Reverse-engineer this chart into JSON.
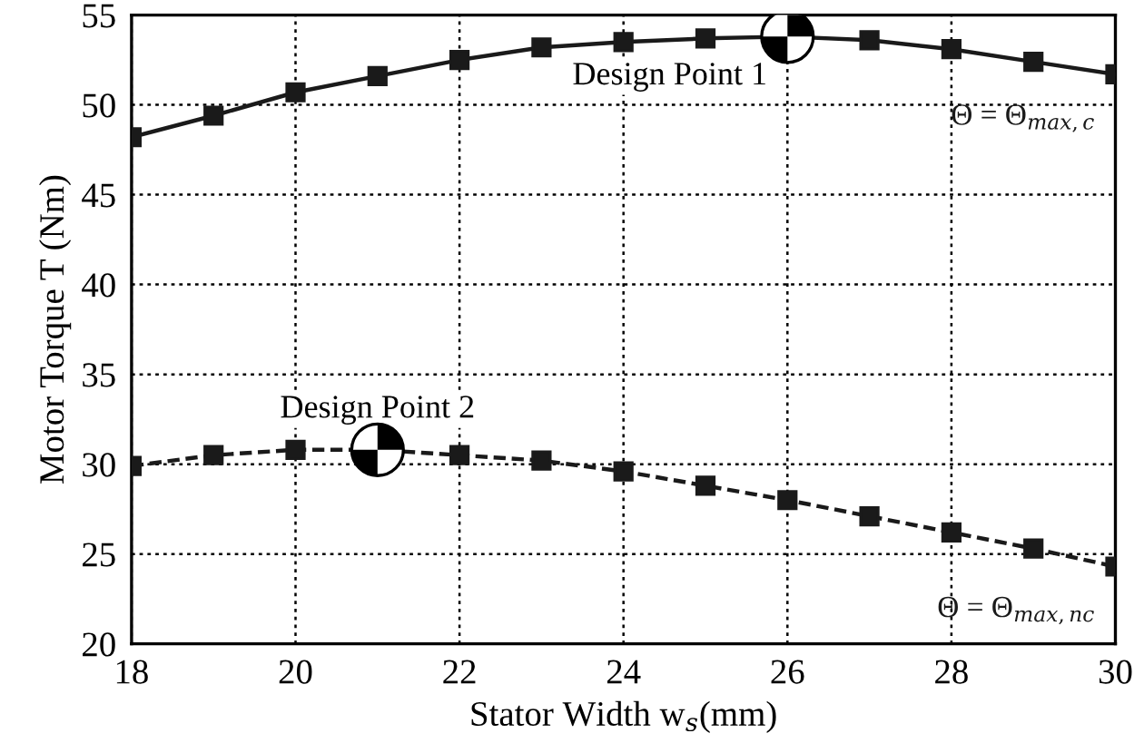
{
  "chart_data": {
    "type": "line",
    "xlabel": "Stator Width w$_{s}$(mm)",
    "ylabel": "Motor Torque T (Nm)",
    "x": [
      18,
      19,
      20,
      21,
      22,
      23,
      24,
      25,
      26,
      27,
      28,
      29,
      30
    ],
    "series": [
      {
        "name": "Θ = Θ$_{max,c}$",
        "color": "#1a1a1a",
        "line_style": "solid",
        "values": [
          48.2,
          49.4,
          50.7,
          51.6,
          52.5,
          53.2,
          53.5,
          53.7,
          53.8,
          53.6,
          53.1,
          52.4,
          51.7
        ]
      },
      {
        "name": "Θ = Θ$_{max,nc}$",
        "color": "#1a1a1a",
        "line_style": "dashed",
        "values": [
          29.9,
          30.5,
          30.8,
          30.8,
          30.5,
          30.2,
          29.6,
          28.8,
          28.0,
          27.1,
          26.2,
          25.3,
          24.3
        ]
      }
    ],
    "annotations": [
      {
        "text": "Design Point 1",
        "x": 26,
        "y": 53.8
      },
      {
        "text": "Design Point 2",
        "x": 21,
        "y": 30.8
      }
    ],
    "marker": "square",
    "grid": true,
    "xlim": [
      18,
      30
    ],
    "xticks": [
      18,
      20,
      22,
      24,
      26,
      28,
      30
    ],
    "ylim": [
      20,
      55
    ],
    "yticks": [
      20,
      25,
      30,
      35,
      40,
      45,
      50,
      55
    ]
  }
}
